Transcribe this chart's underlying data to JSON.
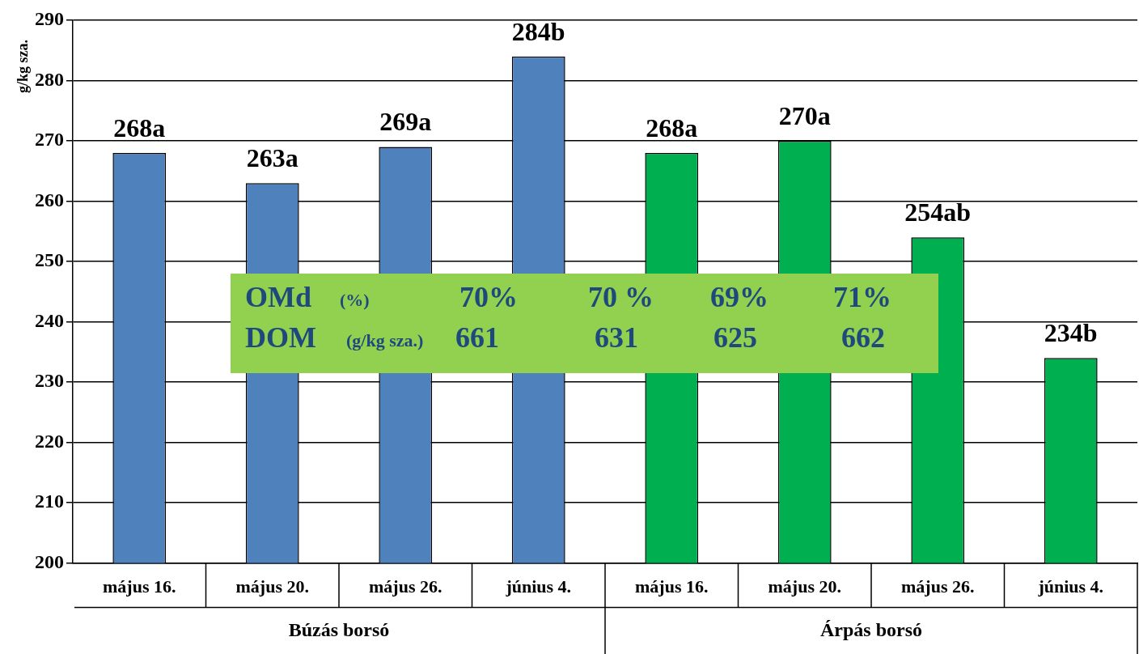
{
  "chart_data": {
    "type": "bar",
    "ylabel": "g/kg sza.",
    "categories": [
      "május 16.",
      "május 20.",
      "május 26.",
      "június 4.",
      "május 16.",
      "május 20.",
      "május 26.",
      "június 4."
    ],
    "values": [
      268,
      263,
      269,
      284,
      268,
      270,
      254,
      234
    ],
    "colors": [
      "#4f81bd",
      "#4f81bd",
      "#4f81bd",
      "#4f81bd",
      "#00b050",
      "#00b050",
      "#00b050",
      "#00b050"
    ],
    "value_labels": [
      "268a",
      "263a",
      "269a",
      "284b",
      "268a",
      "270a",
      "254ab",
      "234b"
    ],
    "ylim": [
      200,
      290
    ],
    "yticks": [
      200,
      210,
      220,
      230,
      240,
      250,
      260,
      270,
      280,
      290
    ],
    "grid": "y",
    "legend": false,
    "annotations": [
      "Búzás borsó",
      "Árpás borsó",
      "OMd",
      "(%)",
      "70%",
      "70 %",
      "69%",
      "71%",
      "DOM",
      "(g/kg sza.)",
      "661",
      "631",
      "625",
      "662"
    ]
  }
}
